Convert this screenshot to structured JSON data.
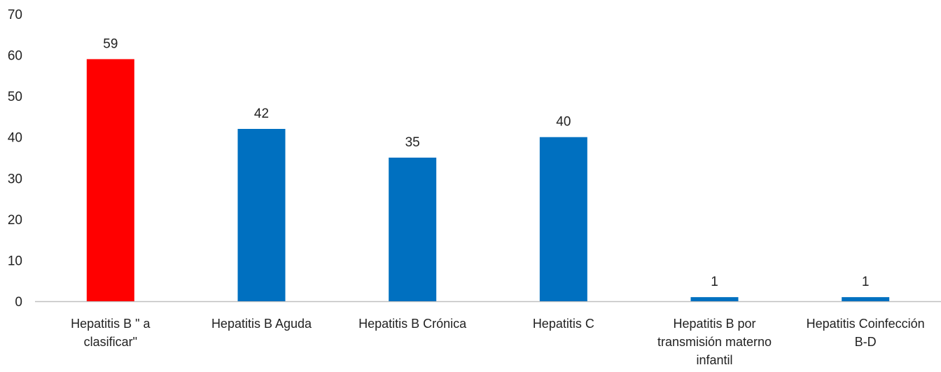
{
  "chart_data": {
    "type": "bar",
    "categories": [
      "Hepatitis B \" a clasificar\"",
      "Hepatitis B Aguda",
      "Hepatitis B Crónica",
      "Hepatitis C",
      "Hepatitis B por transmisión materno infantil",
      "Hepatitis Coinfección B-D"
    ],
    "category_lines": [
      [
        "Hepatitis B \" a",
        "clasificar\""
      ],
      [
        "Hepatitis B Aguda"
      ],
      [
        "Hepatitis B Crónica"
      ],
      [
        "Hepatitis C"
      ],
      [
        "Hepatitis B por",
        "transmisión materno",
        "infantil"
      ],
      [
        "Hepatitis Coinfección",
        "B-D"
      ]
    ],
    "values": [
      59,
      42,
      35,
      40,
      1,
      1
    ],
    "data_labels": [
      "59",
      "42",
      "35",
      "40",
      "1",
      "1"
    ],
    "bar_colors": [
      "#FF0000",
      "#0070C0",
      "#0070C0",
      "#0070C0",
      "#0070C0",
      "#0070C0"
    ],
    "title": "",
    "xlabel": "",
    "ylabel": "",
    "ylim": [
      0,
      70
    ],
    "yticks": [
      0,
      10,
      20,
      30,
      40,
      50,
      60,
      70
    ],
    "ytick_labels": [
      "0",
      "10",
      "20",
      "30",
      "40",
      "50",
      "60",
      "70"
    ],
    "grid": false,
    "legend": "none"
  }
}
